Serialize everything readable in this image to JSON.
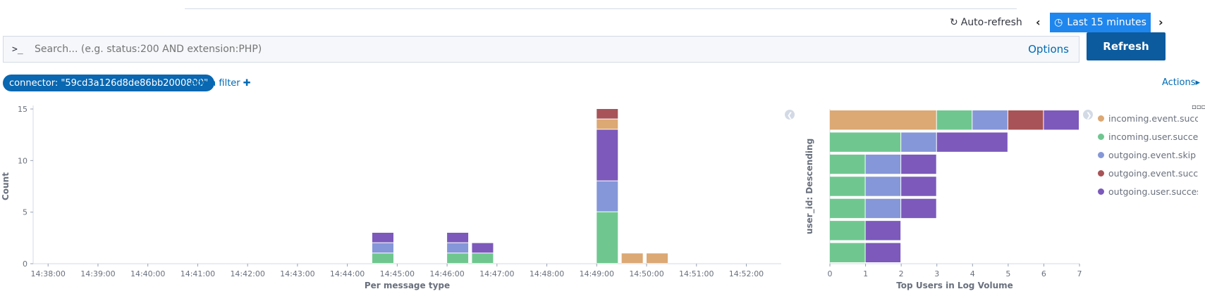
{
  "header": {
    "auto_refresh": "Auto-refresh",
    "time_range": "Last 15 minutes",
    "refresh": "Refresh"
  },
  "search": {
    "prompt": ">_",
    "placeholder": "Search... (e.g. status:200 AND extension:PHP)",
    "options": "Options"
  },
  "filters": {
    "pill": "connector: \"59cd3a126d8de86bb2000800\"",
    "add_filter": "Add a filter",
    "actions": "Actions"
  },
  "colors": {
    "incoming.event.success": "#dca874",
    "incoming.user.success": "#6fc78f",
    "outgoing.event.skip": "#8597d8",
    "outgoing.event.success": "#a85357",
    "outgoing.user.success": "#7c59bb"
  },
  "legend": [
    {
      "label": "incoming.event.succ...",
      "key": "incoming.event.success"
    },
    {
      "label": "incoming.user.success",
      "key": "incoming.user.success"
    },
    {
      "label": "outgoing.event.skip",
      "key": "outgoing.event.skip"
    },
    {
      "label": "outgoing.event.succe...",
      "key": "outgoing.event.success"
    },
    {
      "label": "outgoing.user.success",
      "key": "outgoing.user.success"
    }
  ],
  "chart_data": [
    {
      "type": "bar",
      "xlabel": "Per message type",
      "ylabel": "Count",
      "ylim": [
        0,
        15
      ],
      "yticks": [
        0,
        5,
        10,
        15
      ],
      "xticks": [
        "14:38:00",
        "14:39:00",
        "14:40:00",
        "14:41:00",
        "14:42:00",
        "14:43:00",
        "14:44:00",
        "14:45:00",
        "14:46:00",
        "14:47:00",
        "14:48:00",
        "14:49:00",
        "14:50:00",
        "14:51:00",
        "14:52:00"
      ],
      "bars": [
        {
          "time": "14:44:30",
          "stack": [
            [
              "incoming.user.success",
              1
            ],
            [
              "outgoing.event.skip",
              1
            ],
            [
              "outgoing.user.success",
              1
            ]
          ]
        },
        {
          "time": "14:46:00",
          "stack": [
            [
              "incoming.user.success",
              1
            ],
            [
              "outgoing.event.skip",
              1
            ],
            [
              "outgoing.user.success",
              1
            ]
          ]
        },
        {
          "time": "14:46:30",
          "stack": [
            [
              "incoming.user.success",
              1
            ],
            [
              "outgoing.user.success",
              1
            ]
          ]
        },
        {
          "time": "14:49:00",
          "stack": [
            [
              "incoming.user.success",
              5
            ],
            [
              "outgoing.event.skip",
              3
            ],
            [
              "outgoing.user.success",
              5
            ],
            [
              "incoming.event.success",
              1
            ],
            [
              "outgoing.event.success",
              1
            ]
          ]
        },
        {
          "time": "14:49:30",
          "stack": [
            [
              "incoming.event.success",
              1
            ]
          ]
        },
        {
          "time": "14:50:00",
          "stack": [
            [
              "incoming.event.success",
              1
            ]
          ]
        }
      ]
    },
    {
      "type": "bar",
      "orientation": "horizontal",
      "xlabel": "Top Users in Log Volume",
      "ylabel": "user_id: Descending",
      "xlim": [
        0,
        7
      ],
      "xticks": [
        0,
        1,
        2,
        3,
        4,
        5,
        6,
        7
      ],
      "rows": [
        [
          [
            "incoming.event.success",
            3
          ],
          [
            "incoming.user.success",
            1
          ],
          [
            "outgoing.event.skip",
            1
          ],
          [
            "outgoing.event.success",
            1
          ],
          [
            "outgoing.user.success",
            1
          ]
        ],
        [
          [
            "incoming.user.success",
            2
          ],
          [
            "outgoing.event.skip",
            1
          ],
          [
            "outgoing.user.success",
            2
          ]
        ],
        [
          [
            "incoming.user.success",
            1
          ],
          [
            "outgoing.event.skip",
            1
          ],
          [
            "outgoing.user.success",
            1
          ]
        ],
        [
          [
            "incoming.user.success",
            1
          ],
          [
            "outgoing.event.skip",
            1
          ],
          [
            "outgoing.user.success",
            1
          ]
        ],
        [
          [
            "incoming.user.success",
            1
          ],
          [
            "outgoing.event.skip",
            1
          ],
          [
            "outgoing.user.success",
            1
          ]
        ],
        [
          [
            "incoming.user.success",
            1
          ],
          [
            "outgoing.user.success",
            1
          ]
        ],
        [
          [
            "incoming.user.success",
            1
          ],
          [
            "outgoing.user.success",
            1
          ]
        ]
      ]
    }
  ]
}
